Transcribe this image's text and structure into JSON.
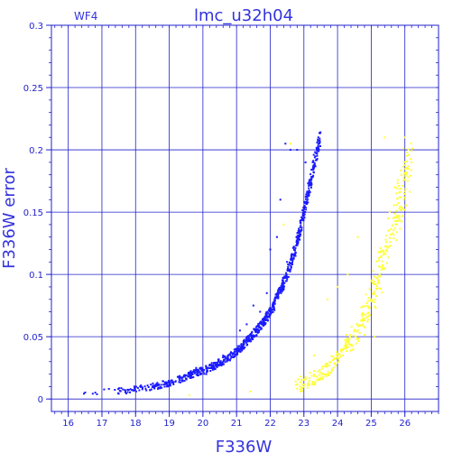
{
  "chart_data": {
    "type": "scatter",
    "title": "lmc_u32h04",
    "subtitle": "WF4",
    "xlabel": "F336W",
    "ylabel": "F336W error",
    "xlim": [
      15.5,
      27
    ],
    "ylim": [
      -0.01,
      0.3
    ],
    "x_ticks": [
      "16",
      "17",
      "18",
      "19",
      "20",
      "21",
      "22",
      "23",
      "24",
      "25",
      "26"
    ],
    "y_ticks": [
      "0",
      "0.05",
      "0.1",
      "0.15",
      "0.2",
      "0.25",
      "0.3"
    ],
    "grid": true,
    "colors": {
      "axis": "#2222cc",
      "series_main": "#1a1aff",
      "series_secondary": "#ffff33"
    },
    "series": [
      {
        "color": "#1a1aff",
        "curve": {
          "x": [
            16.3,
            17.4,
            17.8,
            18.0,
            18.3,
            18.7,
            19.0,
            19.3,
            19.6,
            19.9,
            20.2,
            20.5,
            20.8,
            21.0,
            21.2,
            21.4,
            21.6,
            21.8,
            21.95,
            22.1,
            22.2,
            22.35,
            22.5,
            22.6,
            22.7,
            22.8,
            22.9,
            23.0,
            23.1,
            23.2,
            23.3,
            23.4,
            23.5
          ],
          "y": [
            0.004,
            0.006,
            0.007,
            0.008,
            0.009,
            0.011,
            0.013,
            0.016,
            0.019,
            0.022,
            0.025,
            0.029,
            0.034,
            0.038,
            0.043,
            0.049,
            0.055,
            0.062,
            0.068,
            0.075,
            0.082,
            0.09,
            0.1,
            0.108,
            0.117,
            0.127,
            0.138,
            0.15,
            0.162,
            0.175,
            0.188,
            0.2,
            0.213
          ]
        },
        "outliers": {
          "x": [
            19.8,
            20.1,
            20.6,
            21.1,
            21.3,
            21.5,
            21.7,
            21.9,
            22.0,
            22.2,
            22.3,
            22.4,
            22.5,
            22.6,
            22.45,
            22.8,
            23.05,
            22.7
          ],
          "y": [
            0.025,
            0.02,
            0.035,
            0.055,
            0.06,
            0.075,
            0.07,
            0.085,
            0.12,
            0.13,
            0.16,
            0.09,
            0.11,
            0.2,
            0.205,
            0.2,
            0.19,
            0.115
          ]
        }
      },
      {
        "color": "#ffff33",
        "curve": {
          "x": [
            22.8,
            23.0,
            23.2,
            23.4,
            23.6,
            23.8,
            24.0,
            24.2,
            24.4,
            24.6,
            24.8,
            25.0,
            25.2,
            25.4,
            25.6,
            25.8,
            26.0,
            26.2
          ],
          "y": [
            0.01,
            0.012,
            0.015,
            0.018,
            0.022,
            0.027,
            0.033,
            0.04,
            0.047,
            0.055,
            0.065,
            0.078,
            0.095,
            0.115,
            0.135,
            0.155,
            0.175,
            0.2
          ]
        },
        "outliers": {
          "x": [
            21.4,
            19.6,
            22.6,
            22.4,
            23.7,
            24.0,
            24.6,
            25.4,
            25.7,
            26.0,
            26.2,
            22.9,
            23.3,
            24.3,
            25.1
          ],
          "y": [
            0.006,
            0.003,
            0.205,
            0.14,
            0.08,
            0.09,
            0.13,
            0.21,
            0.17,
            0.21,
            0.19,
            0.018,
            0.035,
            0.1,
            0.05
          ]
        }
      }
    ]
  }
}
